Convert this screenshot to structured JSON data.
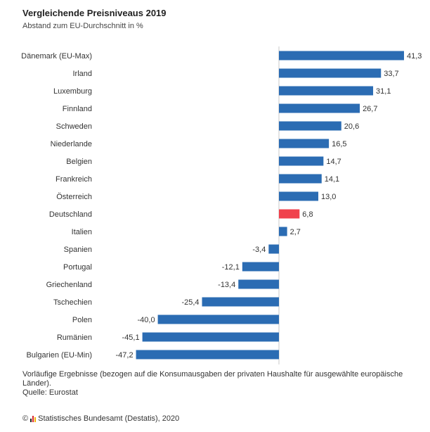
{
  "header": {
    "title": "Vergleichende Preisniveaus 2019",
    "subtitle": "Abstand zum EU-Durchschnitt in %"
  },
  "chart_data": {
    "type": "bar",
    "orientation": "horizontal",
    "title": "Vergleichende Preisniveaus 2019",
    "subtitle": "Abstand zum EU-Durchschnitt in %",
    "xlabel": "",
    "ylabel": "",
    "xlim": [
      -47.2,
      41.3
    ],
    "grid": false,
    "categories": [
      "Dänemark (EU-Max)",
      "Irland",
      "Luxemburg",
      "Finnland",
      "Schweden",
      "Niederlande",
      "Belgien",
      "Frankreich",
      "Österreich",
      "Deutschland",
      "Italien",
      "Spanien",
      "Portugal",
      "Griechenland",
      "Tschechien",
      "Polen",
      "Rumänien",
      "Bulgarien (EU-Min)"
    ],
    "values": [
      41.3,
      33.7,
      31.1,
      26.7,
      20.6,
      16.5,
      14.7,
      14.1,
      13.0,
      6.8,
      2.7,
      -3.4,
      -12.1,
      -13.4,
      -25.4,
      -40.0,
      -45.1,
      -47.2
    ],
    "value_labels": [
      "41,3",
      "33,7",
      "31,1",
      "26,7",
      "20,6",
      "16,5",
      "14,7",
      "14,1",
      "13,0",
      "6,8",
      "2,7",
      "-3,4",
      "-12,1",
      "-13,4",
      "-25,4",
      "-40,0",
      "-45,1",
      "-47,2"
    ],
    "highlight": "Deutschland",
    "colors": {
      "default": "#2b6cb3",
      "highlight": "#f0424d",
      "axis": "#c8c8c8"
    }
  },
  "footer": {
    "note": "Vorläufige Ergebnisse (bezogen auf die Konsumausgaben der privaten Haushalte für ausgewählte europäische Länder).",
    "source": "Quelle: Eurostat",
    "copyright_symbol": "©",
    "credit": "Statistisches Bundesamt (Destatis), 2020"
  }
}
